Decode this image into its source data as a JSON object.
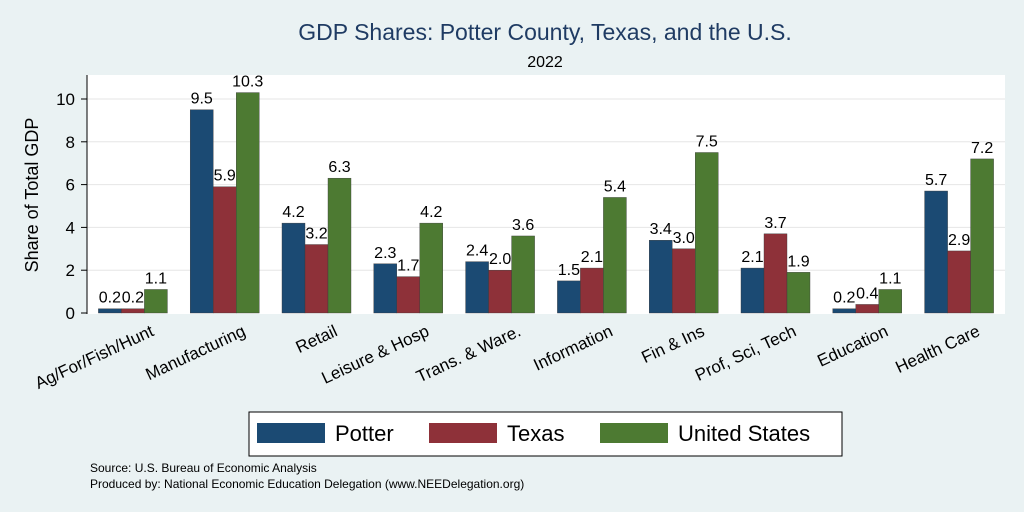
{
  "chart_data": {
    "type": "bar",
    "title": "GDP Shares: Potter County, Texas, and the U.S.",
    "subtitle": "2022",
    "ylabel": "Share of Total GDP",
    "xlabel": "",
    "ylim": [
      0,
      11
    ],
    "yticks": [
      "0",
      "2",
      "4",
      "6",
      "8",
      "10"
    ],
    "grid": true,
    "legend_position": "bottom",
    "categories": [
      "Ag/For/Fish/Hunt",
      "Manufacturing",
      "Retail",
      "Leisure & Hosp",
      "Trans. & Ware.",
      "Information",
      "Fin & Ins",
      "Prof, Sci, Tech",
      "Education",
      "Health Care"
    ],
    "series": [
      {
        "name": "Potter",
        "color": "#1b4a73",
        "values": [
          0.2,
          9.5,
          4.2,
          2.3,
          2.4,
          1.5,
          3.4,
          2.1,
          0.2,
          5.7
        ],
        "labels": [
          "0.2",
          "9.5",
          "4.2",
          "2.3",
          "2.4",
          "1.5",
          "3.4",
          "2.1",
          "0.2",
          "5.7"
        ]
      },
      {
        "name": "Texas",
        "color": "#8e3139",
        "values": [
          0.2,
          5.9,
          3.2,
          1.7,
          2.0,
          2.1,
          3.0,
          3.7,
          0.4,
          2.9
        ],
        "labels": [
          "0.2",
          "5.9",
          "3.2",
          "1.7",
          "2.0",
          "2.1",
          "3.0",
          "3.7",
          "0.4",
          "2.9"
        ]
      },
      {
        "name": "United States",
        "color": "#4d7a32",
        "values": [
          1.1,
          10.3,
          6.3,
          4.2,
          3.6,
          5.4,
          7.5,
          1.9,
          1.1,
          7.2
        ],
        "labels": [
          "1.1",
          "10.3",
          "6.3",
          "4.2",
          "3.6",
          "5.4",
          "7.5",
          "1.9",
          "1.1",
          "7.2"
        ]
      }
    ]
  },
  "notes": {
    "source": "Source: U.S. Bureau of Economic Analysis",
    "produced_by": "Produced by: National Economic Education Delegation (www.NEEDelegation.org)"
  }
}
